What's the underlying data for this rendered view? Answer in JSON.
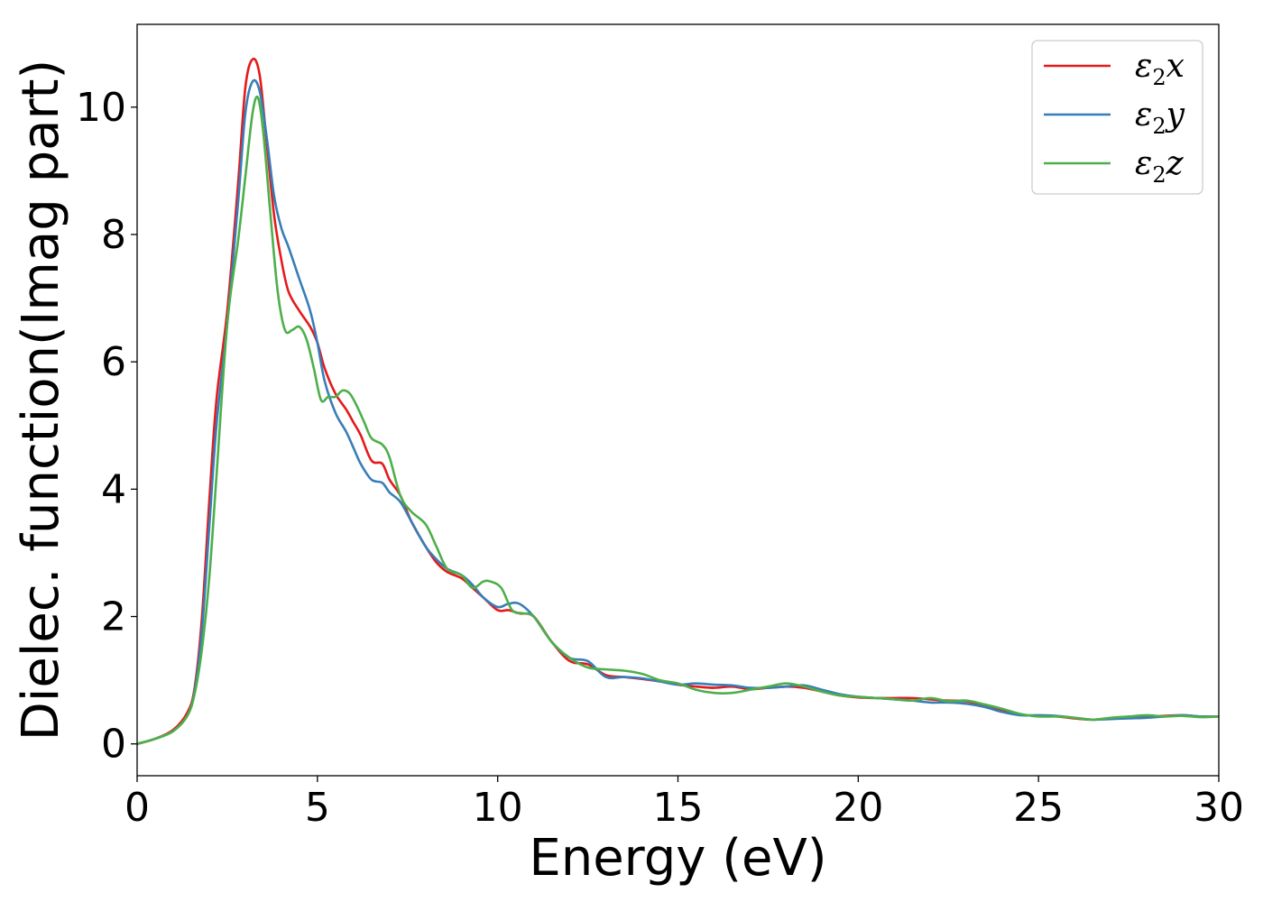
{
  "chart_data": {
    "type": "line",
    "xlabel": "Energy (eV)",
    "ylabel": "Dielec. function(Imag part)",
    "xlim": [
      0,
      30
    ],
    "ylim": [
      -0.5,
      11.3
    ],
    "xticks": [
      0,
      5,
      10,
      15,
      20,
      25,
      30
    ],
    "yticks": [
      0,
      2,
      4,
      6,
      8,
      10
    ],
    "grid": false,
    "legend_position": "top-right",
    "series": [
      {
        "name": "ε₂x",
        "legend_base": "ε",
        "legend_sub": "2",
        "legend_var": "x",
        "color": "#e41a1c",
        "x": [
          0,
          0.5,
          1.0,
          1.4,
          1.6,
          1.8,
          2.0,
          2.2,
          2.5,
          2.8,
          3.0,
          3.2,
          3.4,
          3.6,
          3.8,
          4.0,
          4.2,
          4.5,
          4.8,
          5.0,
          5.2,
          5.5,
          5.8,
          6.0,
          6.2,
          6.5,
          6.8,
          7.0,
          7.3,
          7.6,
          8.0,
          8.3,
          8.6,
          9.0,
          9.3,
          9.6,
          10.0,
          10.3,
          10.6,
          11.0,
          11.5,
          12.0,
          12.5,
          13.0,
          13.5,
          14.0,
          14.5,
          15.0,
          15.5,
          16.0,
          16.5,
          17.0,
          17.5,
          18.0,
          18.5,
          19.0,
          19.5,
          20.0,
          20.5,
          21.0,
          21.5,
          22.0,
          22.5,
          23.0,
          23.5,
          24.0,
          24.5,
          25.0,
          25.5,
          26.0,
          26.5,
          27.0,
          27.5,
          28.0,
          28.5,
          29.0,
          29.5,
          30.0
        ],
        "y": [
          0,
          0.08,
          0.22,
          0.5,
          0.9,
          2.0,
          3.8,
          5.4,
          6.8,
          8.8,
          10.3,
          10.75,
          10.5,
          9.4,
          8.3,
          7.6,
          7.1,
          6.8,
          6.55,
          6.3,
          5.9,
          5.5,
          5.25,
          5.05,
          4.85,
          4.45,
          4.4,
          4.15,
          3.9,
          3.5,
          3.1,
          2.85,
          2.7,
          2.6,
          2.45,
          2.3,
          2.1,
          2.1,
          2.05,
          2.0,
          1.6,
          1.3,
          1.25,
          1.08,
          1.05,
          1.02,
          0.98,
          0.93,
          0.9,
          0.88,
          0.9,
          0.86,
          0.88,
          0.9,
          0.88,
          0.82,
          0.76,
          0.73,
          0.72,
          0.72,
          0.72,
          0.7,
          0.68,
          0.67,
          0.6,
          0.52,
          0.46,
          0.44,
          0.43,
          0.4,
          0.38,
          0.4,
          0.42,
          0.43,
          0.44,
          0.45,
          0.43,
          0.43
        ]
      },
      {
        "name": "ε₂y",
        "legend_base": "ε",
        "legend_sub": "2",
        "legend_var": "y",
        "color": "#377eb8",
        "x": [
          0,
          0.5,
          1.0,
          1.4,
          1.6,
          1.8,
          2.0,
          2.2,
          2.5,
          2.8,
          3.0,
          3.2,
          3.4,
          3.6,
          3.8,
          4.0,
          4.2,
          4.5,
          4.8,
          5.0,
          5.2,
          5.5,
          5.8,
          6.0,
          6.2,
          6.5,
          6.8,
          7.0,
          7.3,
          7.6,
          8.0,
          8.3,
          8.6,
          9.0,
          9.3,
          9.6,
          10.0,
          10.3,
          10.6,
          11.0,
          11.5,
          12.0,
          12.5,
          13.0,
          13.5,
          14.0,
          14.5,
          15.0,
          15.5,
          16.0,
          16.5,
          17.0,
          17.5,
          18.0,
          18.5,
          19.0,
          19.5,
          20.0,
          20.5,
          21.0,
          21.5,
          22.0,
          22.5,
          23.0,
          23.5,
          24.0,
          24.5,
          25.0,
          25.5,
          26.0,
          26.5,
          27.0,
          27.5,
          28.0,
          28.5,
          29.0,
          29.5,
          30.0
        ],
        "y": [
          0,
          0.08,
          0.2,
          0.45,
          0.85,
          1.8,
          3.4,
          5.0,
          6.6,
          8.5,
          9.9,
          10.4,
          10.25,
          9.5,
          8.6,
          8.1,
          7.8,
          7.3,
          6.8,
          6.3,
          5.7,
          5.2,
          4.9,
          4.65,
          4.4,
          4.15,
          4.1,
          3.95,
          3.8,
          3.5,
          3.1,
          2.9,
          2.75,
          2.65,
          2.5,
          2.3,
          2.15,
          2.2,
          2.2,
          2.0,
          1.6,
          1.35,
          1.3,
          1.05,
          1.05,
          1.03,
          0.98,
          0.93,
          0.95,
          0.93,
          0.92,
          0.88,
          0.88,
          0.9,
          0.92,
          0.85,
          0.78,
          0.74,
          0.72,
          0.7,
          0.68,
          0.65,
          0.65,
          0.63,
          0.58,
          0.5,
          0.45,
          0.45,
          0.44,
          0.41,
          0.38,
          0.39,
          0.4,
          0.41,
          0.43,
          0.45,
          0.43,
          0.43
        ]
      },
      {
        "name": "ε₂z",
        "legend_base": "ε",
        "legend_sub": "2",
        "legend_var": "z",
        "color": "#4daf4a",
        "x": [
          0,
          0.5,
          1.0,
          1.4,
          1.6,
          1.8,
          2.0,
          2.2,
          2.5,
          2.8,
          3.0,
          3.2,
          3.35,
          3.5,
          3.7,
          3.9,
          4.1,
          4.3,
          4.5,
          4.7,
          4.9,
          5.1,
          5.3,
          5.5,
          5.7,
          5.9,
          6.1,
          6.3,
          6.5,
          6.8,
          7.0,
          7.3,
          7.6,
          8.0,
          8.3,
          8.6,
          9.0,
          9.3,
          9.6,
          9.8,
          10.1,
          10.4,
          10.7,
          11.0,
          11.5,
          12.0,
          12.5,
          13.0,
          13.5,
          14.0,
          14.5,
          15.0,
          15.5,
          16.0,
          16.5,
          17.0,
          17.5,
          18.0,
          18.5,
          19.0,
          19.5,
          20.0,
          20.5,
          21.0,
          21.5,
          22.0,
          22.5,
          23.0,
          23.5,
          24.0,
          24.5,
          25.0,
          25.5,
          26.0,
          26.5,
          27.0,
          27.5,
          28.0,
          28.5,
          29.0,
          29.5,
          30.0
        ],
        "y": [
          0,
          0.08,
          0.2,
          0.45,
          0.8,
          1.5,
          2.6,
          4.2,
          6.6,
          7.9,
          8.9,
          9.9,
          10.15,
          9.6,
          8.3,
          7.1,
          6.5,
          6.5,
          6.55,
          6.35,
          5.9,
          5.4,
          5.45,
          5.45,
          5.55,
          5.5,
          5.3,
          5.05,
          4.8,
          4.7,
          4.5,
          3.9,
          3.65,
          3.45,
          3.1,
          2.75,
          2.65,
          2.45,
          2.55,
          2.55,
          2.45,
          2.1,
          2.05,
          2.0,
          1.6,
          1.35,
          1.2,
          1.17,
          1.15,
          1.1,
          1.0,
          0.95,
          0.85,
          0.8,
          0.8,
          0.85,
          0.9,
          0.95,
          0.9,
          0.82,
          0.76,
          0.74,
          0.72,
          0.7,
          0.68,
          0.72,
          0.67,
          0.68,
          0.62,
          0.55,
          0.47,
          0.43,
          0.43,
          0.41,
          0.38,
          0.41,
          0.43,
          0.45,
          0.43,
          0.44,
          0.42,
          0.43
        ]
      }
    ]
  }
}
